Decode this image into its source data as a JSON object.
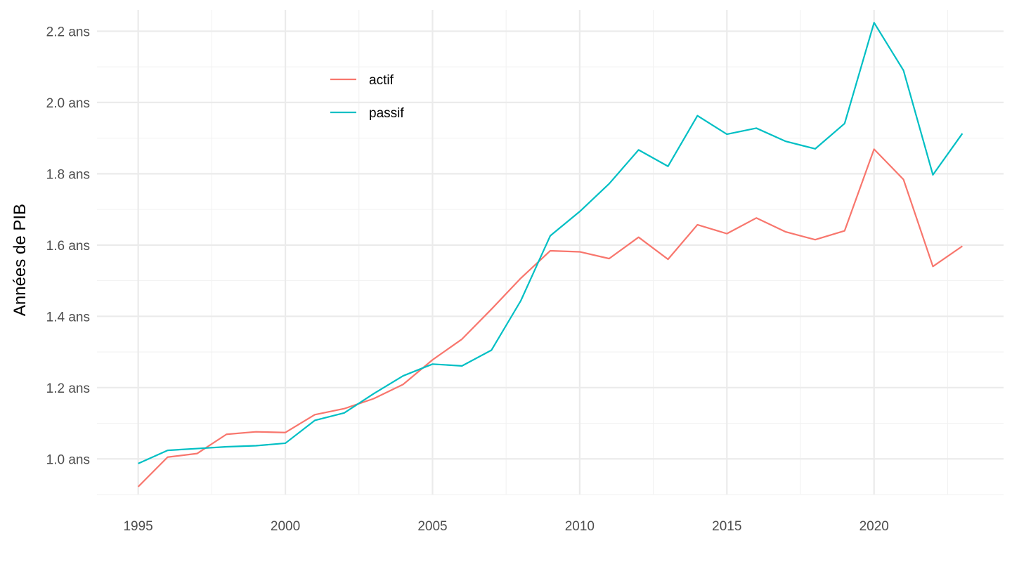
{
  "chart_data": {
    "type": "line",
    "title": "",
    "xlabel": "",
    "ylabel": "Années de PIB",
    "x": [
      1995,
      1996,
      1997,
      1998,
      1999,
      2000,
      2001,
      2002,
      2003,
      2004,
      2005,
      2006,
      2007,
      2008,
      2009,
      2010,
      2011,
      2012,
      2013,
      2014,
      2015,
      2016,
      2017,
      2018,
      2019,
      2020,
      2021,
      2022,
      2023
    ],
    "series": [
      {
        "name": "actif",
        "color": "#F8766D",
        "values": [
          0.922,
          1.005,
          1.015,
          1.069,
          1.076,
          1.074,
          1.124,
          1.141,
          1.169,
          1.209,
          1.278,
          1.336,
          1.42,
          1.507,
          1.584,
          1.581,
          1.562,
          1.622,
          1.56,
          1.657,
          1.632,
          1.676,
          1.637,
          1.615,
          1.64,
          1.869,
          1.784,
          1.54,
          1.597
        ]
      },
      {
        "name": "passif",
        "color": "#00BFC4",
        "values": [
          0.987,
          1.024,
          1.029,
          1.034,
          1.037,
          1.044,
          1.108,
          1.129,
          1.183,
          1.233,
          1.266,
          1.261,
          1.305,
          1.444,
          1.626,
          1.694,
          1.772,
          1.867,
          1.821,
          1.963,
          1.911,
          1.928,
          1.891,
          1.87,
          1.941,
          2.224,
          2.09,
          1.797,
          1.913
        ]
      }
    ],
    "x_ticks": [
      1995,
      2000,
      2005,
      2010,
      2015,
      2020
    ],
    "x_tick_labels": [
      "1995",
      "2000",
      "2005",
      "2010",
      "2015",
      "2020"
    ],
    "y_ticks": [
      1.0,
      1.2,
      1.4,
      1.6,
      1.8,
      2.0,
      2.2
    ],
    "y_tick_labels": [
      "1.0 ans",
      "1.2 ans",
      "1.4 ans",
      "1.6 ans",
      "1.8 ans",
      "2.0 ans",
      "2.2 ans"
    ],
    "xlim": [
      1993.6,
      2024.4
    ],
    "ylim": [
      0.9,
      2.26
    ],
    "grid": true,
    "legend_position": "top-left inside"
  }
}
